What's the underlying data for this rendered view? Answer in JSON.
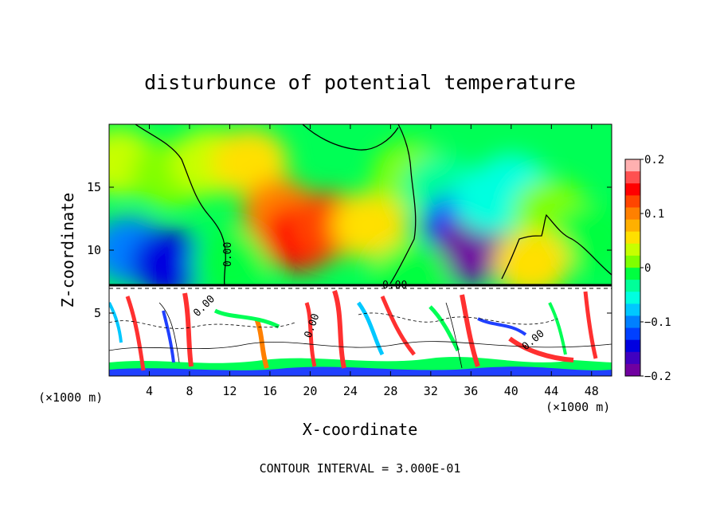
{
  "chart_data": {
    "type": "heatmap",
    "title": "disturbunce of potential temperature",
    "xlabel": "X-coordinate",
    "ylabel": "Z-coordinate",
    "x_unit_left": "(×1000 m)",
    "x_unit_right": "(×1000 m)",
    "xlim": [
      0,
      50
    ],
    "ylim": [
      0,
      20
    ],
    "x_ticks": [
      4,
      8,
      12,
      16,
      20,
      24,
      28,
      32,
      36,
      40,
      44,
      48
    ],
    "y_ticks": [
      5,
      10,
      15
    ],
    "colorbar": {
      "min": -0.2,
      "max": 0.2,
      "tick_values": [
        0.2,
        0.1,
        0,
        -0.1,
        -0.2
      ],
      "tick_labels": [
        "0.2",
        "0.1",
        "0",
        "−0.1",
        "−0.2"
      ],
      "colors": [
        "#ffb0b0",
        "#ff5050",
        "#ff0000",
        "#ff4500",
        "#ff8000",
        "#ffb000",
        "#ffe000",
        "#c8ff00",
        "#7fff00",
        "#00ff40",
        "#00ff99",
        "#00ffe0",
        "#00c8ff",
        "#0080ff",
        "#0040ff",
        "#0000e0",
        "#4000c0",
        "#7000a0"
      ]
    },
    "contour_labels": [
      "0.00",
      "0.00",
      "0.00",
      "0.00",
      "0.00"
    ],
    "footer": "CONTOUR INTERVAL = 3.000E-01",
    "field": [
      {
        "x": 1,
        "z": 17,
        "v": 0.03
      },
      {
        "x": 6,
        "z": 16,
        "v": 0.02
      },
      {
        "x": 10,
        "z": 17,
        "v": 0.03
      },
      {
        "x": 14,
        "z": 17,
        "v": 0.05
      },
      {
        "x": 17,
        "z": 13,
        "v": 0.1
      },
      {
        "x": 19,
        "z": 11,
        "v": 0.15
      },
      {
        "x": 22,
        "z": 12,
        "v": 0.12
      },
      {
        "x": 26,
        "z": 12,
        "v": 0.06
      },
      {
        "x": 30,
        "z": 16,
        "v": 0.02
      },
      {
        "x": 33,
        "z": 15,
        "v": -0.03
      },
      {
        "x": 35,
        "z": 12,
        "v": -0.12
      },
      {
        "x": 36,
        "z": 10,
        "v": -0.2
      },
      {
        "x": 38,
        "z": 14,
        "v": -0.06
      },
      {
        "x": 40,
        "z": 15,
        "v": -0.05
      },
      {
        "x": 44,
        "z": 13,
        "v": 0.01
      },
      {
        "x": 48,
        "z": 11,
        "v": 0.0
      },
      {
        "x": 2,
        "z": 10,
        "v": -0.1
      },
      {
        "x": 6,
        "z": 9,
        "v": -0.15
      },
      {
        "x": 12,
        "z": 9,
        "v": 0.0
      },
      {
        "x": 30,
        "z": 8,
        "v": 0.0
      },
      {
        "x": 42,
        "z": 9,
        "v": 0.06
      }
    ]
  }
}
